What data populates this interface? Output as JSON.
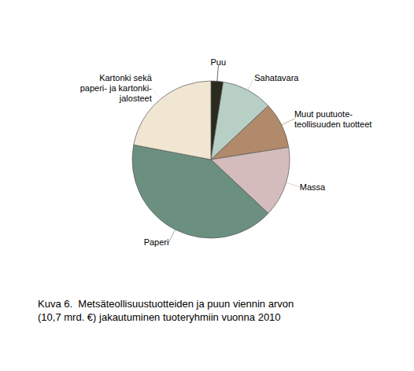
{
  "chart_data": {
    "type": "pie",
    "categories": [
      "Puu",
      "Sahatavara",
      "Muut puutuote-\nteollisuuden tuotteet",
      "Massa",
      "Paperi",
      "Kartonki sekä\npaperi- ja kartonki-\njalosteet"
    ],
    "values": [
      2.5,
      10.5,
      9.5,
      14.5,
      41.0,
      22.0
    ],
    "colors": [
      "#2a2a1e",
      "#b8cfc5",
      "#b08a6a",
      "#d4bcbc",
      "#6b9080",
      "#f0e6d2"
    ],
    "annotations": [
      "Kuva 6.  Metsäteollisuustuotteiden ja puun viennin arvon",
      "(10,7 mrd. €) jakautuminen tuoteryhmiin vuonna 2010"
    ]
  }
}
